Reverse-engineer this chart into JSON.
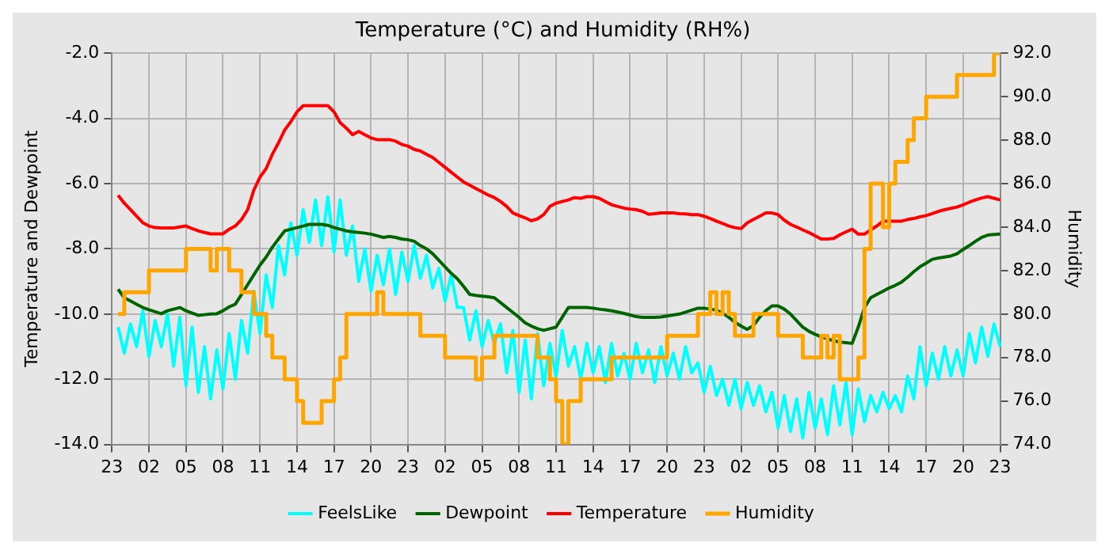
{
  "chart_data": {
    "type": "line",
    "title": "Temperature (°C) and Humidity (RH%)",
    "ylabel": "Temperature and Dewpoint",
    "y2label": "Humidity",
    "categories": [
      "23",
      null,
      null,
      null,
      null,
      null,
      "02",
      null,
      null,
      null,
      null,
      null,
      "05",
      null,
      null,
      null,
      null,
      null,
      "08",
      null,
      null,
      null,
      null,
      null,
      "11",
      null,
      null,
      null,
      null,
      null,
      "14",
      null,
      null,
      null,
      null,
      null,
      "17",
      null,
      null,
      null,
      null,
      null,
      "20",
      null,
      null,
      null,
      null,
      null,
      "23",
      null,
      null,
      null,
      null,
      null,
      "02",
      null,
      null,
      null,
      null,
      null,
      "05",
      null,
      null,
      null,
      null,
      null,
      "08",
      null,
      null,
      null,
      null,
      null,
      "11",
      null,
      null,
      null,
      null,
      null,
      "14",
      null,
      null,
      null,
      null,
      null,
      "17",
      null,
      null,
      null,
      null,
      null,
      "20",
      null,
      null,
      null,
      null,
      null,
      "23",
      null,
      null,
      null,
      null,
      null,
      "02",
      null,
      null,
      null,
      null,
      null,
      "05",
      null,
      null,
      null,
      null,
      null,
      "08",
      null,
      null,
      null,
      null,
      null,
      "11",
      null,
      null,
      null,
      null,
      null,
      "14",
      null,
      null,
      null,
      null,
      null,
      "17",
      null,
      null,
      null,
      null,
      null,
      "20",
      null,
      null,
      null,
      null,
      null,
      "23"
    ],
    "ylim": [
      -14,
      -2
    ],
    "yticks": [
      {
        "value": -14,
        "label": "-14.0"
      },
      {
        "value": -12,
        "label": "-12.0"
      },
      {
        "value": -10,
        "label": "-10.0"
      },
      {
        "value": -8,
        "label": "-8.0"
      },
      {
        "value": -6,
        "label": "-6.0"
      },
      {
        "value": -4,
        "label": "-4.0"
      },
      {
        "value": -2,
        "label": "-2.0"
      }
    ],
    "y2lim": [
      74,
      92
    ],
    "y2ticks": [
      {
        "value": 74,
        "label": "74.0"
      },
      {
        "value": 76,
        "label": "76.0"
      },
      {
        "value": 78,
        "label": "78.0"
      },
      {
        "value": 80,
        "label": "80.0"
      },
      {
        "value": 82,
        "label": "82.0"
      },
      {
        "value": 84,
        "label": "84.0"
      },
      {
        "value": 86,
        "label": "86.0"
      },
      {
        "value": 88,
        "label": "88.0"
      },
      {
        "value": 90,
        "label": "90.0"
      },
      {
        "value": 92,
        "label": "92.0"
      }
    ],
    "grid": true,
    "legend": "bottom",
    "marker": "none",
    "series": [
      {
        "name": "FeelsLike",
        "color": "#00ffff",
        "values": [
          null,
          -10.4,
          -11.2,
          -10.3,
          -11.0,
          -9.9,
          -11.3,
          -10.2,
          -11.0,
          -10.0,
          -11.6,
          -10.1,
          -12.2,
          -10.4,
          -12.4,
          -11.0,
          -12.6,
          -11.1,
          -12.3,
          -10.6,
          -12.0,
          -10.2,
          -11.2,
          -9.3,
          -10.6,
          -8.8,
          -9.8,
          -7.9,
          -8.8,
          -7.2,
          -8.2,
          -6.8,
          -7.8,
          -6.5,
          -7.9,
          -6.4,
          -8.1,
          -6.5,
          -8.2,
          -7.3,
          -9.0,
          -8.0,
          -9.3,
          -8.2,
          -9.1,
          -8.0,
          -9.4,
          -8.1,
          -9.0,
          -7.9,
          -8.9,
          -8.2,
          -9.2,
          -8.6,
          -9.6,
          -8.8,
          -9.8,
          -9.8,
          -10.8,
          -9.9,
          -11.0,
          -10.2,
          -10.9,
          -10.3,
          -11.8,
          -10.5,
          -12.4,
          -10.8,
          -12.6,
          -10.6,
          -12.2,
          -10.9,
          -11.9,
          -10.5,
          -11.6,
          -11.0,
          -12.0,
          -10.9,
          -11.8,
          -11.0,
          -12.1,
          -10.9,
          -11.9,
          -11.2,
          -12.0,
          -10.9,
          -11.8,
          -11.1,
          -12.1,
          -11.0,
          -11.9,
          -11.2,
          -12.0,
          -11.0,
          -11.8,
          -11.5,
          -12.4,
          -11.6,
          -12.5,
          -12.0,
          -12.8,
          -12.0,
          -12.9,
          -12.1,
          -12.8,
          -12.2,
          -13.0,
          -12.4,
          -13.5,
          -12.5,
          -13.6,
          -12.6,
          -13.8,
          -12.4,
          -13.5,
          -12.6,
          -13.7,
          -12.2,
          -13.4,
          -12.1,
          -13.7,
          -12.3,
          -13.3,
          -12.5,
          -13.0,
          -12.4,
          -12.9,
          -12.5,
          -13.0,
          -11.9,
          -12.6,
          -11.0,
          -12.2,
          -11.2,
          -12.0,
          -11.0,
          -11.9,
          -11.1,
          -11.9,
          -10.6,
          -11.5,
          -10.4,
          -11.3,
          -10.3,
          -11.0
        ]
      },
      {
        "name": "Dewpoint",
        "color": "#006400",
        "values": [
          null,
          -9.24,
          -9.5,
          -9.6,
          -9.7,
          -9.8,
          -9.87,
          -9.93,
          -9.99,
          -9.9,
          -9.85,
          -9.8,
          -9.9,
          -9.97,
          -10.04,
          -10.02,
          -10.0,
          -9.99,
          -9.9,
          -9.78,
          -9.7,
          -9.4,
          -9.1,
          -8.8,
          -8.5,
          -8.25,
          -7.95,
          -7.7,
          -7.45,
          -7.4,
          -7.35,
          -7.3,
          -7.25,
          -7.25,
          -7.25,
          -7.28,
          -7.35,
          -7.4,
          -7.45,
          -7.48,
          -7.5,
          -7.52,
          -7.55,
          -7.6,
          -7.65,
          -7.62,
          -7.65,
          -7.7,
          -7.72,
          -7.77,
          -7.9,
          -8.0,
          -8.15,
          -8.35,
          -8.55,
          -8.75,
          -8.92,
          -9.15,
          -9.4,
          -9.43,
          -9.45,
          -9.47,
          -9.5,
          -9.65,
          -9.8,
          -9.95,
          -10.1,
          -10.27,
          -10.37,
          -10.45,
          -10.5,
          -10.45,
          -10.4,
          -10.1,
          -9.8,
          -9.8,
          -9.8,
          -9.8,
          -9.82,
          -9.85,
          -9.87,
          -9.9,
          -9.94,
          -9.98,
          -10.03,
          -10.08,
          -10.1,
          -10.1,
          -10.1,
          -10.09,
          -10.06,
          -10.03,
          -10.0,
          -9.94,
          -9.88,
          -9.82,
          -9.82,
          -9.85,
          -9.88,
          -9.97,
          -10.1,
          -10.25,
          -10.37,
          -10.47,
          -10.35,
          -10.1,
          -9.9,
          -9.75,
          -9.75,
          -9.85,
          -10.0,
          -10.2,
          -10.4,
          -10.53,
          -10.62,
          -10.7,
          -10.76,
          -10.82,
          -10.86,
          -10.88,
          -10.9,
          -10.4,
          -9.8,
          -9.5,
          -9.4,
          -9.3,
          -9.2,
          -9.12,
          -9.02,
          -8.87,
          -8.7,
          -8.55,
          -8.44,
          -8.32,
          -8.28,
          -8.25,
          -8.22,
          -8.15,
          -8.02,
          -7.9,
          -7.77,
          -7.65,
          -7.58,
          -7.56,
          -7.55
        ]
      },
      {
        "name": "Temperature",
        "color": "#ff0000",
        "values": [
          null,
          -6.36,
          -6.6,
          -6.8,
          -7.0,
          -7.2,
          -7.3,
          -7.35,
          -7.36,
          -7.36,
          -7.36,
          -7.33,
          -7.3,
          -7.38,
          -7.45,
          -7.5,
          -7.54,
          -7.54,
          -7.54,
          -7.4,
          -7.3,
          -7.1,
          -6.8,
          -6.2,
          -5.8,
          -5.54,
          -5.1,
          -4.75,
          -4.36,
          -4.1,
          -3.8,
          -3.61,
          -3.61,
          -3.61,
          -3.61,
          -3.61,
          -3.8,
          -4.13,
          -4.3,
          -4.5,
          -4.4,
          -4.5,
          -4.6,
          -4.65,
          -4.65,
          -4.65,
          -4.7,
          -4.8,
          -4.85,
          -4.95,
          -5.0,
          -5.1,
          -5.2,
          -5.35,
          -5.5,
          -5.65,
          -5.8,
          -5.95,
          -6.05,
          -6.15,
          -6.25,
          -6.35,
          -6.43,
          -6.55,
          -6.7,
          -6.9,
          -6.98,
          -7.05,
          -7.14,
          -7.08,
          -6.95,
          -6.7,
          -6.6,
          -6.55,
          -6.5,
          -6.43,
          -6.45,
          -6.4,
          -6.4,
          -6.45,
          -6.55,
          -6.65,
          -6.7,
          -6.75,
          -6.78,
          -6.8,
          -6.85,
          -6.94,
          -6.92,
          -6.9,
          -6.9,
          -6.9,
          -6.92,
          -6.93,
          -6.95,
          -6.95,
          -7.0,
          -7.07,
          -7.15,
          -7.22,
          -7.3,
          -7.35,
          -7.38,
          -7.2,
          -7.1,
          -7.0,
          -6.9,
          -6.9,
          -6.95,
          -7.12,
          -7.25,
          -7.33,
          -7.42,
          -7.5,
          -7.6,
          -7.7,
          -7.7,
          -7.68,
          -7.57,
          -7.48,
          -7.4,
          -7.55,
          -7.55,
          -7.42,
          -7.3,
          -7.15,
          -7.15,
          -7.15,
          -7.15,
          -7.1,
          -7.07,
          -7.02,
          -6.98,
          -6.92,
          -6.85,
          -6.8,
          -6.76,
          -6.72,
          -6.65,
          -6.57,
          -6.5,
          -6.44,
          -6.4,
          -6.45,
          -6.5
        ]
      },
      {
        "name": "Humidity",
        "color": "#ffa500",
        "type": "step",
        "axis": "y2",
        "values": [
          null,
          80,
          81,
          81,
          81,
          81,
          82,
          82,
          82,
          82,
          82,
          82,
          83,
          83,
          83,
          83,
          82,
          83,
          83,
          82,
          82,
          81,
          81,
          80,
          80,
          79,
          78,
          78,
          77,
          77,
          76,
          75,
          75,
          75,
          76,
          76,
          77,
          78,
          80,
          80,
          80,
          80,
          80,
          81,
          80,
          80,
          80,
          80,
          80,
          80,
          79,
          79,
          79,
          79,
          78,
          78,
          78,
          78,
          78,
          77,
          78,
          78,
          79,
          79,
          79,
          79,
          79,
          79,
          79,
          78,
          78,
          77,
          76,
          74,
          76,
          76,
          77,
          77,
          77,
          77,
          77,
          78,
          78,
          78,
          78,
          78,
          78,
          78,
          78,
          78,
          79,
          79,
          79,
          79,
          79,
          80,
          80,
          81,
          80,
          81,
          80,
          79,
          79,
          79,
          80,
          80,
          80,
          80,
          79,
          79,
          79,
          79,
          78,
          78,
          78,
          79,
          78,
          79,
          77,
          77,
          77,
          78,
          83,
          86,
          86,
          84,
          86,
          87,
          87,
          88,
          89,
          89,
          90,
          90,
          90,
          90,
          90,
          91,
          91,
          91,
          91,
          91,
          91,
          92,
          92
        ]
      }
    ]
  }
}
